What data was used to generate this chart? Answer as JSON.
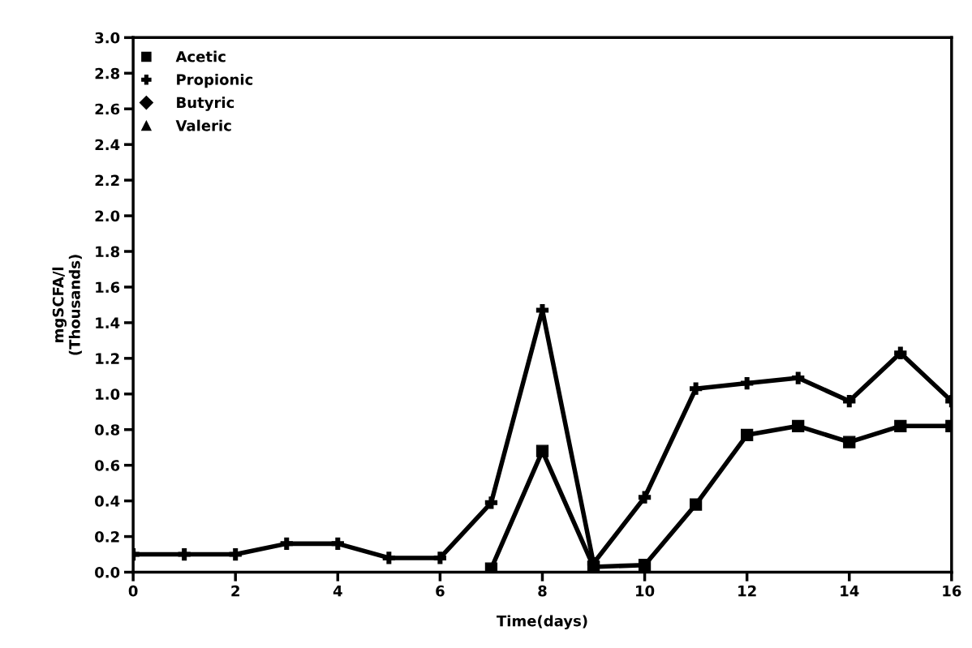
{
  "chart_data": {
    "type": "line",
    "xlabel": "Time(days)",
    "ylabel": "mgSCFA/l\n(Thousands)",
    "x": [
      0,
      1,
      2,
      3,
      4,
      5,
      6,
      7,
      8,
      9,
      10,
      11,
      12,
      13,
      14,
      15,
      16
    ],
    "series": [
      {
        "name": "Acetic",
        "color": "#000000",
        "marker": "square",
        "values": [
          null,
          null,
          null,
          null,
          null,
          null,
          null,
          0.02,
          0.68,
          0.03,
          0.04,
          0.38,
          0.77,
          0.82,
          0.73,
          0.82,
          0.82
        ]
      },
      {
        "name": "Propionic",
        "color": "#000000",
        "marker": "cross",
        "values": [
          0.1,
          0.1,
          0.1,
          0.16,
          0.16,
          0.08,
          0.08,
          0.39,
          1.47,
          0.05,
          0.42,
          1.03,
          1.06,
          1.09,
          0.96,
          1.23,
          0.96
        ]
      },
      {
        "name": "Butyric",
        "color": "#000000",
        "marker": "diamond",
        "values": [
          null,
          null,
          null,
          null,
          null,
          null,
          null,
          null,
          null,
          null,
          null,
          null,
          null,
          null,
          null,
          null,
          null
        ]
      },
      {
        "name": "Valeric",
        "color": "#000000",
        "marker": "triangle",
        "values": [
          null,
          null,
          null,
          null,
          null,
          null,
          null,
          null,
          null,
          null,
          null,
          null,
          null,
          null,
          null,
          null,
          null
        ]
      }
    ],
    "xlim": [
      0,
      16
    ],
    "xticks": [
      0,
      2,
      4,
      6,
      8,
      10,
      12,
      14,
      16
    ],
    "ylim": [
      0,
      3.0
    ],
    "yticks": [
      {
        "value": 0,
        "label": "0.0"
      },
      {
        "value": 0.2,
        "label": "0.2"
      },
      {
        "value": 0.4,
        "label": "0.4"
      },
      {
        "value": 0.6,
        "label": "0.6"
      },
      {
        "value": 0.8,
        "label": "0.8"
      },
      {
        "value": 1.0,
        "label": "1.0"
      },
      {
        "value": 1.2,
        "label": "1.2"
      },
      {
        "value": 1.4,
        "label": "1.4"
      },
      {
        "value": 1.6,
        "label": "1.6"
      },
      {
        "value": 1.8,
        "label": "1.8"
      },
      {
        "value": 2.0,
        "label": "2.0"
      },
      {
        "value": 2.2,
        "label": "2.2"
      },
      {
        "value": 2.4,
        "label": "2.4"
      },
      {
        "value": 2.6,
        "label": "2.6"
      },
      {
        "value": 2.8,
        "label": "2.8"
      },
      {
        "value": 3.0,
        "label": "3.0"
      }
    ],
    "grid": false,
    "legend": "top left",
    "line_style": "solid"
  }
}
